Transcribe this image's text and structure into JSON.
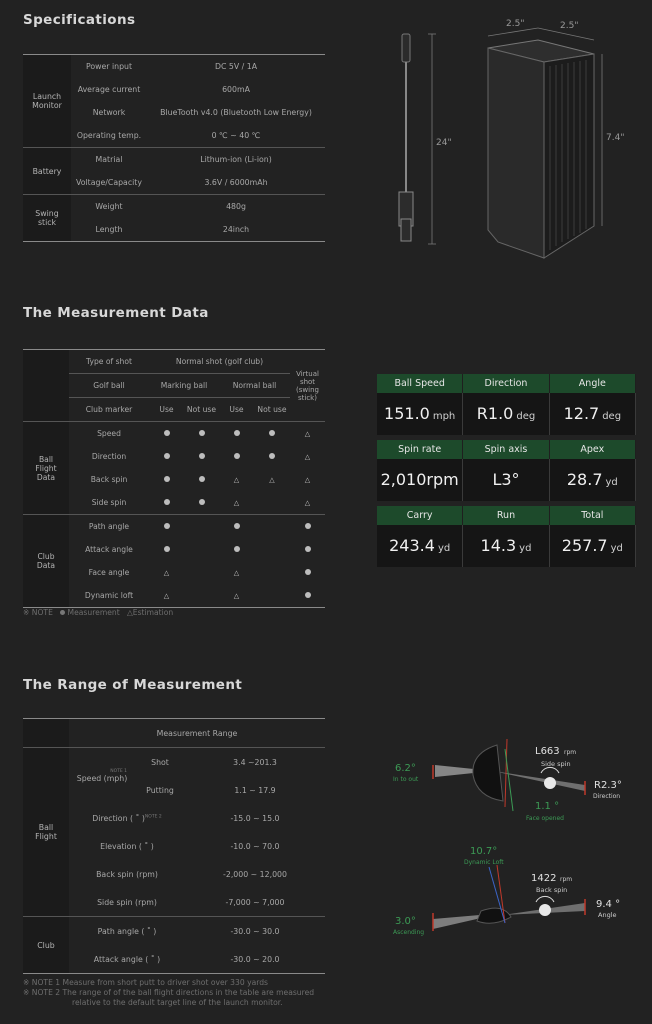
{
  "spec": {
    "title": "Specifications",
    "groups": [
      {
        "name": "Launch\nMonitor",
        "rows": [
          {
            "label": "Power input",
            "value": "DC 5V / 1A"
          },
          {
            "label": "Average current",
            "value": "600mA"
          },
          {
            "label": "Network",
            "value": "BlueTooth v4.0 (Bluetooth Low Energy)"
          },
          {
            "label": "Operating temp.",
            "value": "0 ℃ ~ 40 ℃"
          }
        ]
      },
      {
        "name": "Battery",
        "rows": [
          {
            "label": "Matrial",
            "value": "Lithum-ion (Li-ion)"
          },
          {
            "label": "Voltage/Capacity",
            "value": "3.6V / 6000mAh"
          }
        ]
      },
      {
        "name": "Swing\nstick",
        "rows": [
          {
            "label": "Weight",
            "value": "480g"
          },
          {
            "label": "Length",
            "value": "24inch"
          }
        ]
      }
    ],
    "dims": {
      "stick_length": "24\"",
      "width_a": "2.5\"",
      "width_b": "2.5\"",
      "height": "7.4\""
    }
  },
  "measure": {
    "title": "The Measurement Data",
    "type_of_shot": "Type of shot",
    "normal_shot": "Normal shot (golf club)",
    "virtual_shot": "Virtual shot (swing stick)",
    "golf_ball": "Golf ball",
    "marking_ball": "Marking ball",
    "normal_ball": "Normal ball",
    "club_marker": "Club marker",
    "use": "Use",
    "not_use": "Not use",
    "groups": [
      {
        "name": "Ball\nFlight\nData",
        "rows": [
          {
            "label": "Speed",
            "marks": [
              "m",
              "m",
              "m",
              "m",
              "e"
            ]
          },
          {
            "label": "Direction",
            "marks": [
              "m",
              "m",
              "m",
              "m",
              "e"
            ]
          },
          {
            "label": "Back spin",
            "marks": [
              "m",
              "m",
              "e",
              "e",
              "e"
            ]
          },
          {
            "label": "Side spin",
            "marks": [
              "m",
              "m",
              "e",
              "",
              "e"
            ]
          }
        ]
      },
      {
        "name": "Club\nData",
        "rows": [
          {
            "label": "Path angle",
            "marks": [
              "m",
              "",
              "m",
              "",
              "m"
            ]
          },
          {
            "label": "Attack angle",
            "marks": [
              "m",
              "",
              "m",
              "",
              "m"
            ]
          },
          {
            "label": "Face angle",
            "marks": [
              "e",
              "",
              "e",
              "",
              "m"
            ]
          },
          {
            "label": "Dynamic loft",
            "marks": [
              "e",
              "",
              "e",
              "",
              "m"
            ]
          }
        ]
      }
    ],
    "note_label": "※ NOTE",
    "legend_measurement": "Measurement",
    "legend_estimation": "Estimation",
    "panel": [
      [
        {
          "label": "Ball Speed",
          "value": "151.0",
          "unit": "mph"
        },
        {
          "label": "Direction",
          "value": "R1.0",
          "unit": "deg"
        },
        {
          "label": "Angle",
          "value": "12.7",
          "unit": "deg"
        }
      ],
      [
        {
          "label": "Spin rate",
          "value": "2,010rpm",
          "unit": ""
        },
        {
          "label": "Spin axis",
          "value": "L3°",
          "unit": ""
        },
        {
          "label": "Apex",
          "value": "28.7",
          "unit": "yd"
        }
      ],
      [
        {
          "label": "Carry",
          "value": "243.4",
          "unit": "yd"
        },
        {
          "label": "Run",
          "value": "14.3",
          "unit": "yd"
        },
        {
          "label": "Total",
          "value": "257.7",
          "unit": "yd"
        }
      ]
    ]
  },
  "range": {
    "title": "The Range of Measurement",
    "header": "Measurement Range",
    "ball_flight": "Ball\nFlight",
    "club": "Club",
    "speed_label": "Speed (mph)",
    "note1_sup": "NOTE 1",
    "note2_sup": "NOTE 2",
    "rows": [
      {
        "label": "Shot",
        "value": "3.4 ~201.3"
      },
      {
        "label": "Putting",
        "value": "1.1 ~ 17.9"
      },
      {
        "label": "Direction ( ˚ )",
        "value": "-15.0 ~ 15.0"
      },
      {
        "label": "Elevation ( ˚ )",
        "value": "-10.0 ~ 70.0"
      },
      {
        "label": "Back spin (rpm)",
        "value": "-2,000 ~ 12,000"
      },
      {
        "label": "Side spin (rpm)",
        "value": "-7,000 ~ 7,000"
      },
      {
        "label": "Path angle ( ˚ )",
        "value": "-30.0 ~ 30.0"
      },
      {
        "label": "Attack angle ( ˚ )",
        "value": "-30.0 ~ 20.0"
      }
    ],
    "notes": [
      "※ NOTE 1   Measure from short putt to driver shot over 330 yards",
      "※ NOTE 2   The range of of the ball flight directions in the table are measured",
      "relative to the default target line of the launch monitor."
    ],
    "graphic": {
      "top": {
        "path": "6.2°",
        "path_sub": "In to out",
        "side": "L663",
        "side_unit": "rpm",
        "side_sub": "Side spin",
        "dir": "R2.3°",
        "dir_sub": "Direction",
        "face": "1.1 °",
        "face_sub": "Face opened"
      },
      "bottom": {
        "loft": "10.7°",
        "loft_sub": "Dynamic Loft",
        "back": "1422",
        "back_unit": "rpm",
        "back_sub": "Back spin",
        "attack": "3.0°",
        "attack_sub": "Ascending",
        "angle": "9.4 °",
        "angle_sub": "Angle"
      }
    }
  },
  "colors": {
    "accent_green": "#1d4a2b",
    "label_green": "#3c9a55",
    "red": "#c0392b"
  }
}
